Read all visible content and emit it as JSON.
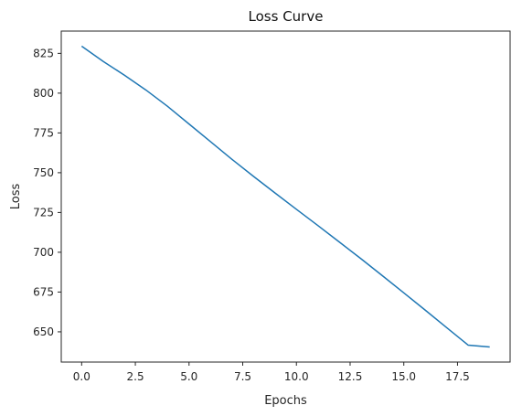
{
  "chart_data": {
    "type": "line",
    "title": "Loss Curve",
    "xlabel": "Epochs",
    "ylabel": "Loss",
    "xlim": [
      -0.95,
      19.95
    ],
    "ylim": [
      631,
      839
    ],
    "grid": false,
    "legend": "none",
    "xticks": [
      0,
      2.5,
      5,
      7.5,
      10,
      12.5,
      15,
      17.5
    ],
    "xtick_labels": [
      "0.0",
      "2.5",
      "5.0",
      "7.5",
      "10.0",
      "12.5",
      "15.0",
      "17.5"
    ],
    "yticks": [
      650,
      675,
      700,
      725,
      750,
      775,
      800,
      825
    ],
    "ytick_labels": [
      "650",
      "675",
      "700",
      "725",
      "750",
      "775",
      "800",
      "825"
    ],
    "series": [
      {
        "color": "#1f77b4",
        "x": [
          0,
          1,
          2,
          3,
          4,
          5,
          6,
          7,
          8,
          9,
          10,
          11,
          12,
          13,
          14,
          15,
          16,
          17,
          18,
          19
        ],
        "y": [
          829.5,
          820.0,
          811.2,
          801.9,
          791.7,
          780.6,
          769.5,
          758.4,
          747.7,
          737.3,
          727.0,
          716.8,
          706.4,
          696.0,
          685.3,
          674.5,
          663.6,
          652.6,
          641.6,
          640.5
        ]
      }
    ]
  }
}
